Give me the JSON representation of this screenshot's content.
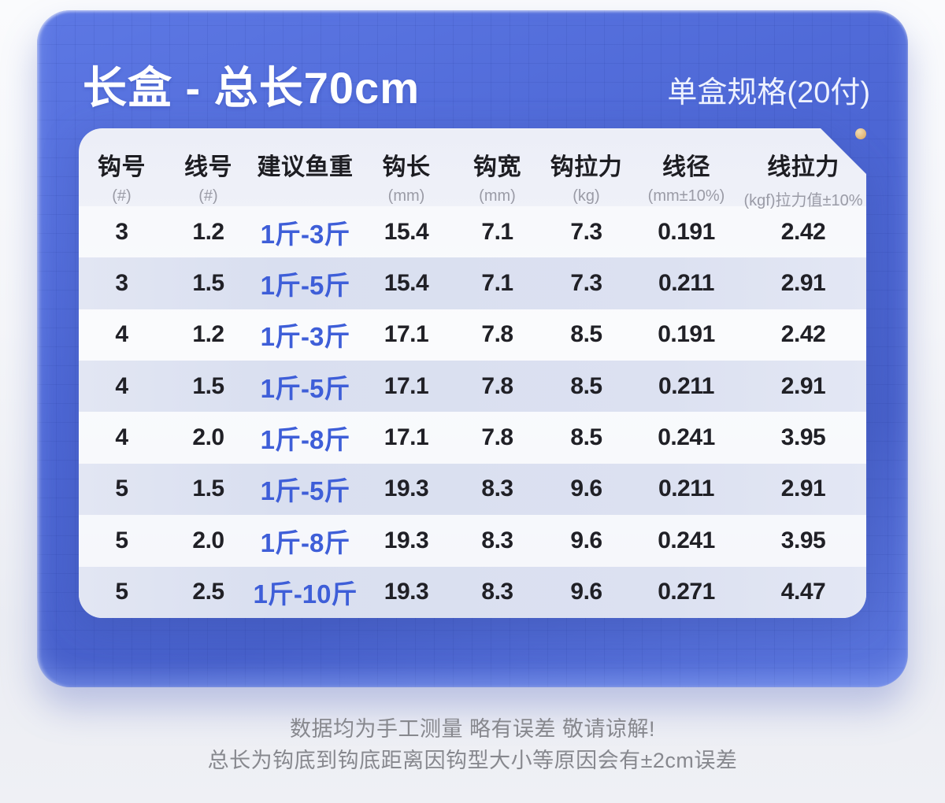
{
  "header": {
    "title": "长盒 - 总长70cm",
    "box_spec": "单盒规格(20付)"
  },
  "colors": {
    "card_blue": "#4c66d4",
    "accent_blue": "#3e5ed8",
    "gold_dot": "#ddae6c",
    "stripe_blue": "#dce1f1"
  },
  "table": {
    "columns": [
      {
        "name": "hook-size",
        "label": "钩号",
        "unit": "(#)"
      },
      {
        "name": "line-size",
        "label": "线号",
        "unit": "(#)"
      },
      {
        "name": "suggested-fish-weight",
        "label": "建议鱼重",
        "unit": ""
      },
      {
        "name": "hook-length",
        "label": "钩长",
        "unit": "(mm)"
      },
      {
        "name": "hook-width",
        "label": "钩宽",
        "unit": "(mm)"
      },
      {
        "name": "hook-pull-strength",
        "label": "钩拉力",
        "unit": "(kg)"
      },
      {
        "name": "line-diameter",
        "label": "线径",
        "unit": "(mm±10%)"
      },
      {
        "name": "line-pull-strength",
        "label": "线拉力",
        "unit": "(kgf)拉力值±10%"
      }
    ],
    "rows": [
      [
        "3",
        "1.2",
        "1斤-3斤",
        "15.4",
        "7.1",
        "7.3",
        "0.191",
        "2.42"
      ],
      [
        "3",
        "1.5",
        "1斤-5斤",
        "15.4",
        "7.1",
        "7.3",
        "0.211",
        "2.91"
      ],
      [
        "4",
        "1.2",
        "1斤-3斤",
        "17.1",
        "7.8",
        "8.5",
        "0.191",
        "2.42"
      ],
      [
        "4",
        "1.5",
        "1斤-5斤",
        "17.1",
        "7.8",
        "8.5",
        "0.211",
        "2.91"
      ],
      [
        "4",
        "2.0",
        "1斤-8斤",
        "17.1",
        "7.8",
        "8.5",
        "0.241",
        "3.95"
      ],
      [
        "5",
        "1.5",
        "1斤-5斤",
        "19.3",
        "8.3",
        "9.6",
        "0.211",
        "2.91"
      ],
      [
        "5",
        "2.0",
        "1斤-8斤",
        "19.3",
        "8.3",
        "9.6",
        "0.241",
        "3.95"
      ],
      [
        "5",
        "2.5",
        "1斤-10斤",
        "19.3",
        "8.3",
        "9.6",
        "0.271",
        "4.47"
      ]
    ]
  },
  "footer": {
    "line1": "数据均为手工测量 略有误差 敬请谅解!",
    "line2": "总长为钩底到钩底距离因钩型大小等原因会有±2cm误差"
  }
}
